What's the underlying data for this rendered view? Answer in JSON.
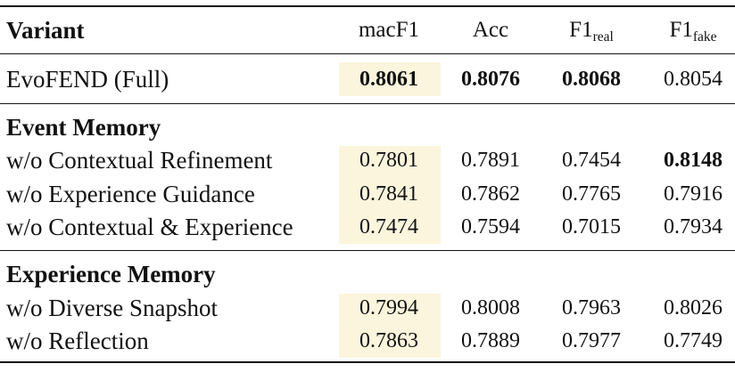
{
  "table": {
    "header": {
      "variant": "Variant",
      "macf1": "macF1",
      "acc": "Acc",
      "f1_real_base": "F1",
      "f1_real_sub": "real",
      "f1_fake_base": "F1",
      "f1_fake_sub": "fake"
    },
    "full_row": {
      "variant": "EvoFEND (Full)",
      "macf1": "0.8061",
      "acc": "0.8076",
      "f1_real": "0.8068",
      "f1_fake": "0.8054"
    },
    "sections": [
      {
        "title": "Event Memory",
        "rows": [
          {
            "variant": "w/o Contextual Refinement",
            "macf1": "0.7801",
            "acc": "0.7891",
            "f1_real": "0.7454",
            "f1_fake": "0.8148"
          },
          {
            "variant": "w/o Experience Guidance",
            "macf1": "0.7841",
            "acc": "0.7862",
            "f1_real": "0.7765",
            "f1_fake": "0.7916"
          },
          {
            "variant": "w/o Contextual & Experience",
            "macf1": "0.7474",
            "acc": "0.7594",
            "f1_real": "0.7015",
            "f1_fake": "0.7934"
          }
        ]
      },
      {
        "title": "Experience Memory",
        "rows": [
          {
            "variant": "w/o Diverse Snapshot",
            "macf1": "0.7994",
            "acc": "0.8008",
            "f1_real": "0.7963",
            "f1_fake": "0.8026"
          },
          {
            "variant": "w/o Reflection",
            "macf1": "0.7863",
            "acc": "0.7889",
            "f1_real": "0.7977",
            "f1_fake": "0.7749"
          }
        ]
      }
    ],
    "highlight_color": "#fbf5dd"
  }
}
